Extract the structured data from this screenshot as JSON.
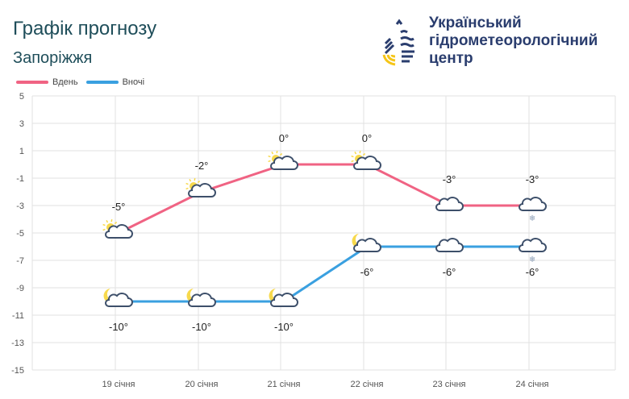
{
  "header": {
    "title": "Графік прогнозу",
    "city": "Запоріжжя"
  },
  "logo": {
    "lines": [
      "Український",
      "гідрометеорологічний",
      "центр"
    ]
  },
  "chart_data": {
    "type": "line",
    "categories": [
      "19 січня",
      "20 січня",
      "21 січня",
      "22 січня",
      "23 січня",
      "24 січня"
    ],
    "series": [
      {
        "name": "Вдень",
        "color": "#f06383",
        "values": [
          -5,
          -2,
          0,
          0,
          -3,
          -3
        ],
        "labels": [
          "-5°",
          "-2°",
          "0°",
          "0°",
          "-3°",
          "-3°"
        ],
        "icons": [
          "sun-cloud",
          "sun-cloud",
          "sun-cloud",
          "sun-cloud",
          "cloud",
          "cloud-snow"
        ]
      },
      {
        "name": "Вночі",
        "color": "#3aa0e0",
        "values": [
          -10,
          -10,
          -10,
          -6,
          -6,
          -6
        ],
        "labels": [
          "-10°",
          "-10°",
          "-10°",
          "-6°",
          "-6°",
          "-6°"
        ],
        "icons": [
          "moon-cloud",
          "moon-cloud",
          "moon-cloud",
          "moon-cloud",
          "cloud",
          "cloud-snow"
        ]
      }
    ],
    "yticks": [
      5,
      3,
      1,
      -1,
      -3,
      -5,
      -7,
      -9,
      -11,
      -13,
      -15
    ],
    "ylim": [
      -15,
      5
    ],
    "grid": true,
    "legend": "top-left"
  }
}
